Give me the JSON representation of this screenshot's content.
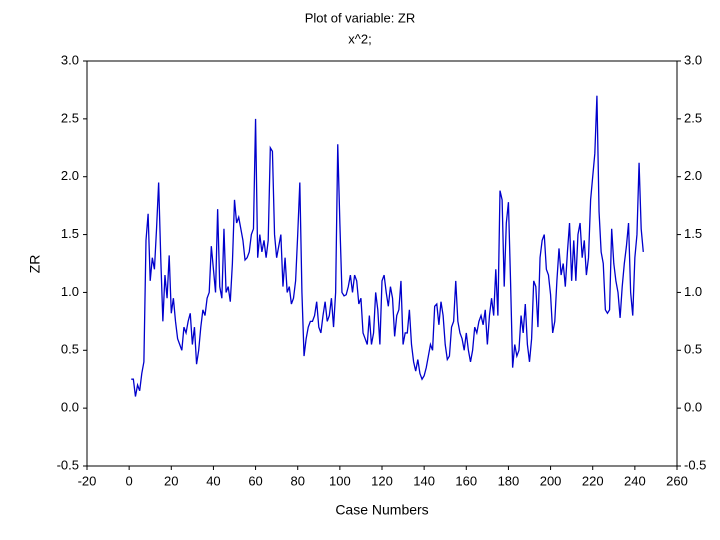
{
  "chart_data": {
    "type": "line",
    "title": "Plot of variable: ZR",
    "subtitle": "x^2;",
    "x_label": "Case Numbers",
    "y_label": "ZR",
    "x": [
      1,
      2,
      3,
      4,
      5,
      6,
      7,
      8,
      9,
      10,
      11,
      12,
      13,
      14,
      15,
      16,
      17,
      18,
      19,
      20,
      21,
      22,
      23,
      24,
      25,
      26,
      27,
      28,
      29,
      30,
      31,
      32,
      33,
      34,
      35,
      36,
      37,
      38,
      39,
      40,
      41,
      42,
      43,
      44,
      45,
      46,
      47,
      48,
      49,
      50,
      51,
      52,
      53,
      54,
      55,
      56,
      57,
      58,
      59,
      60,
      61,
      62,
      63,
      64,
      65,
      66,
      67,
      68,
      69,
      70,
      71,
      72,
      73,
      74,
      75,
      76,
      77,
      78,
      79,
      80,
      81,
      82,
      83,
      84,
      85,
      86,
      87,
      88,
      89,
      90,
      91,
      92,
      93,
      94,
      95,
      96,
      97,
      98,
      99,
      100,
      101,
      102,
      103,
      104,
      105,
      106,
      107,
      108,
      109,
      110,
      111,
      112,
      113,
      114,
      115,
      116,
      117,
      118,
      119,
      120,
      121,
      122,
      123,
      124,
      125,
      126,
      127,
      128,
      129,
      130,
      131,
      132,
      133,
      134,
      135,
      136,
      137,
      138,
      139,
      140,
      141,
      142,
      143,
      144,
      145,
      146,
      147,
      148,
      149,
      150,
      151,
      152,
      153,
      154,
      155,
      156,
      157,
      158,
      159,
      160,
      161,
      162,
      163,
      164,
      165,
      166,
      167,
      168,
      169,
      170,
      171,
      172,
      173,
      174,
      175,
      176,
      177,
      178,
      179,
      180,
      181,
      182,
      183,
      184,
      185,
      186,
      187,
      188,
      189,
      190,
      191,
      192,
      193,
      194,
      195,
      196,
      197,
      198,
      199,
      200,
      201,
      202,
      203,
      204,
      205,
      206,
      207,
      208,
      209,
      210,
      211,
      212,
      213,
      214,
      215,
      216,
      217,
      218,
      219,
      220,
      221,
      222,
      223,
      224,
      225,
      226,
      227,
      228,
      229,
      230,
      231,
      232,
      233,
      234,
      235,
      236,
      237,
      238,
      239,
      240,
      241,
      242,
      243,
      244
    ],
    "series": [
      {
        "name": "ZR",
        "color": "#0000cc",
        "values": [
          0.25,
          0.25,
          0.1,
          0.2,
          0.15,
          0.3,
          0.4,
          1.45,
          1.68,
          1.1,
          1.3,
          1.2,
          1.55,
          1.95,
          1.3,
          0.75,
          1.15,
          0.95,
          1.32,
          0.82,
          0.95,
          0.75,
          0.6,
          0.55,
          0.5,
          0.7,
          0.65,
          0.75,
          0.82,
          0.55,
          0.7,
          0.38,
          0.5,
          0.7,
          0.85,
          0.8,
          0.95,
          1.0,
          1.4,
          1.2,
          1.0,
          1.72,
          1.05,
          0.95,
          1.55,
          1.0,
          1.05,
          0.92,
          1.25,
          1.8,
          1.6,
          1.65,
          1.55,
          1.45,
          1.28,
          1.3,
          1.35,
          1.5,
          1.55,
          2.5,
          1.3,
          1.5,
          1.35,
          1.45,
          1.3,
          1.45,
          2.25,
          2.22,
          1.5,
          1.3,
          1.4,
          1.5,
          1.05,
          1.3,
          1.0,
          1.05,
          0.9,
          0.95,
          1.1,
          1.5,
          1.95,
          1.0,
          0.45,
          0.6,
          0.7,
          0.75,
          0.75,
          0.8,
          0.92,
          0.7,
          0.65,
          0.8,
          0.92,
          0.75,
          0.8,
          0.95,
          0.7,
          1.0,
          2.28,
          1.6,
          1.0,
          0.97,
          0.98,
          1.05,
          1.15,
          1.0,
          1.15,
          1.1,
          0.9,
          0.95,
          0.65,
          0.6,
          0.55,
          0.8,
          0.55,
          0.65,
          1.0,
          0.85,
          0.55,
          1.1,
          1.15,
          1.0,
          0.88,
          1.05,
          0.95,
          0.62,
          0.8,
          0.85,
          1.1,
          0.55,
          0.65,
          0.65,
          0.85,
          0.55,
          0.4,
          0.32,
          0.42,
          0.3,
          0.25,
          0.28,
          0.35,
          0.45,
          0.55,
          0.5,
          0.88,
          0.9,
          0.72,
          0.92,
          0.8,
          0.55,
          0.42,
          0.45,
          0.7,
          0.75,
          1.1,
          0.75,
          0.65,
          0.6,
          0.5,
          0.65,
          0.5,
          0.4,
          0.5,
          0.7,
          0.65,
          0.75,
          0.8,
          0.72,
          0.85,
          0.55,
          0.8,
          0.95,
          0.8,
          1.2,
          0.8,
          1.88,
          1.8,
          1.05,
          1.6,
          1.78,
          1.1,
          0.35,
          0.55,
          0.45,
          0.5,
          0.8,
          0.65,
          0.9,
          0.55,
          0.4,
          0.6,
          1.1,
          1.05,
          0.7,
          1.3,
          1.45,
          1.5,
          1.2,
          1.15,
          0.98,
          0.65,
          0.75,
          1.1,
          1.38,
          1.15,
          1.25,
          1.05,
          1.35,
          1.6,
          1.1,
          1.45,
          1.1,
          1.5,
          1.6,
          1.3,
          1.45,
          1.15,
          1.3,
          1.8,
          2.0,
          2.2,
          2.7,
          1.7,
          1.35,
          1.25,
          0.85,
          0.82,
          0.85,
          1.55,
          1.25,
          1.1,
          1.0,
          0.78,
          1.05,
          1.25,
          1.4,
          1.6,
          1.0,
          0.8,
          1.3,
          1.5,
          2.12,
          1.55,
          1.35
        ]
      }
    ],
    "xlim": [
      -20,
      260
    ],
    "xticks": [
      -20,
      0,
      20,
      40,
      60,
      80,
      100,
      120,
      140,
      160,
      180,
      200,
      220,
      240,
      260
    ],
    "ylim": [
      -0.5,
      3.0
    ],
    "yticks": [
      {
        "value": -0.5,
        "label": "-0.5"
      },
      {
        "value": 0,
        "label": "0.0"
      },
      {
        "value": 0.5,
        "label": "0.5"
      },
      {
        "value": 1,
        "label": "1.0"
      },
      {
        "value": 1.5,
        "label": "1.5"
      },
      {
        "value": 2,
        "label": "2.0"
      },
      {
        "value": 2.5,
        "label": "2.5"
      },
      {
        "value": 3,
        "label": "3.0"
      }
    ],
    "grid": false
  }
}
